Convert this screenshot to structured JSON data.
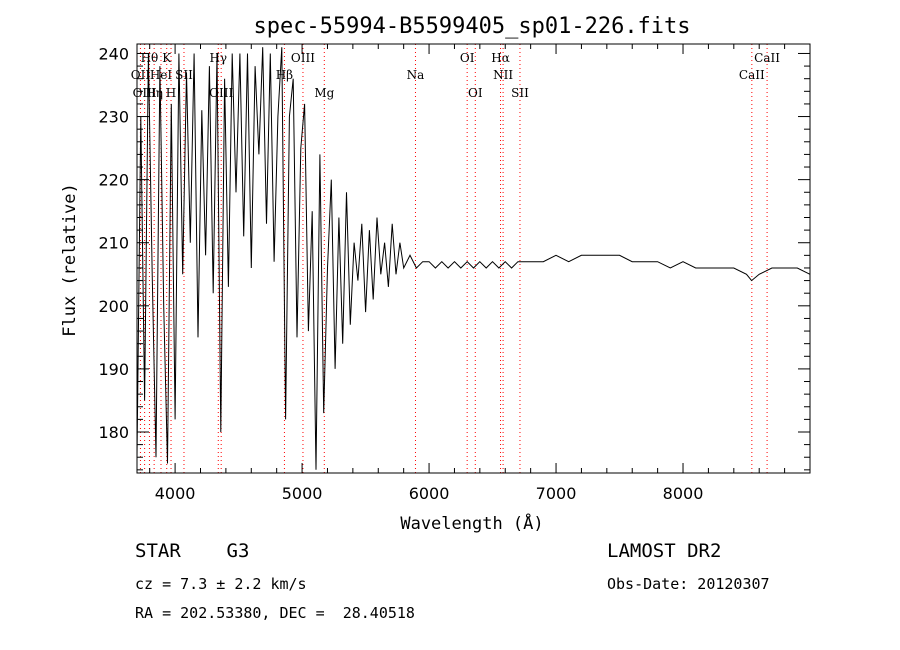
{
  "chart_data": {
    "type": "line",
    "title": "spec-55994-B5599405_sp01-226.fits",
    "xlabel": "Wavelength (Å)",
    "ylabel": "Flux (relative)",
    "xlim": [
      3700,
      9000
    ],
    "ylim": [
      173.5,
      241.5
    ],
    "x_ticks": [
      4000,
      5000,
      6000,
      7000,
      8000
    ],
    "y_ticks": [
      180,
      190,
      200,
      210,
      220,
      230,
      240
    ],
    "grid": false,
    "line_color": "#000000",
    "marker_color": "#ff0000",
    "series": [
      {
        "x": [
          3700,
          3730,
          3760,
          3790,
          3820,
          3850,
          3880,
          3910,
          3940,
          3970,
          4000,
          4030,
          4060,
          4090,
          4120,
          4150,
          4180,
          4210,
          4240,
          4270,
          4300,
          4330,
          4360,
          4390,
          4420,
          4450,
          4480,
          4510,
          4540,
          4570,
          4600,
          4630,
          4660,
          4690,
          4720,
          4750,
          4780,
          4810,
          4840,
          4870,
          4900,
          4930,
          4960,
          4990,
          5020,
          5050,
          5080,
          5110,
          5140,
          5170,
          5200,
          5230,
          5260,
          5290,
          5320,
          5350,
          5380,
          5410,
          5440,
          5470,
          5500,
          5530,
          5560,
          5590,
          5620,
          5650,
          5680,
          5710,
          5740,
          5770,
          5800,
          5850,
          5900,
          5950,
          6000,
          6050,
          6100,
          6150,
          6200,
          6250,
          6300,
          6350,
          6400,
          6450,
          6500,
          6550,
          6600,
          6650,
          6700,
          6750,
          6800,
          6900,
          7000,
          7100,
          7200,
          7300,
          7400,
          7500,
          7600,
          7700,
          7800,
          7900,
          8000,
          8100,
          8200,
          8300,
          8400,
          8500,
          8540,
          8600,
          8700,
          8800,
          8900,
          9000
        ],
        "y": [
          176,
          230,
          185,
          240,
          205,
          176,
          238,
          200,
          175,
          232,
          182,
          240,
          205,
          237,
          210,
          240,
          195,
          231,
          208,
          238,
          202,
          240,
          180,
          236,
          203,
          240,
          218,
          240,
          211,
          240,
          206,
          238,
          224,
          241,
          213,
          240,
          207,
          230,
          241,
          182,
          230,
          236,
          195,
          225,
          232,
          196,
          215,
          174,
          224,
          183,
          206,
          220,
          190,
          214,
          194,
          218,
          197,
          210,
          204,
          213,
          199,
          212,
          201,
          214,
          205,
          210,
          203,
          213,
          205,
          210,
          206,
          208,
          206,
          207,
          207,
          206,
          207,
          206,
          207,
          206,
          207,
          206,
          207,
          206,
          207,
          206,
          207,
          206,
          207,
          207,
          207,
          207,
          208,
          207,
          208,
          208,
          208,
          208,
          207,
          207,
          207,
          206,
          207,
          206,
          206,
          206,
          206,
          205,
          204,
          205,
          206,
          206,
          206,
          205
        ]
      }
    ],
    "line_markers": [
      {
        "label": "Hθ",
        "x": 3798,
        "row": 1
      },
      {
        "label": "K",
        "x": 3934,
        "row": 1
      },
      {
        "label": "Hγ",
        "x": 4340,
        "row": 1
      },
      {
        "label": "OIII",
        "x": 5007,
        "row": 1
      },
      {
        "label": "OI",
        "x": 6300,
        "row": 1
      },
      {
        "label": "Hα",
        "x": 6563,
        "row": 1
      },
      {
        "label": "CaII",
        "x": 8662,
        "row": 1
      },
      {
        "label": "OII",
        "x": 3727,
        "row": 2
      },
      {
        "label": "HeI",
        "x": 3889,
        "row": 2
      },
      {
        "label": "SII",
        "x": 4070,
        "row": 2
      },
      {
        "label": "Hβ",
        "x": 4861,
        "row": 2
      },
      {
        "label": "Na",
        "x": 5893,
        "row": 2
      },
      {
        "label": "NII",
        "x": 6583,
        "row": 2
      },
      {
        "label": "CaII",
        "x": 8542,
        "row": 2
      },
      {
        "label": "OIII",
        "x": 3760,
        "row": 3
      },
      {
        "label": "Hη",
        "x": 3835,
        "row": 3
      },
      {
        "label": "H",
        "x": 3968,
        "row": 3
      },
      {
        "label": "OIII",
        "x": 4363,
        "row": 3
      },
      {
        "label": "Mg",
        "x": 5175,
        "row": 3
      },
      {
        "label": "OI",
        "x": 6364,
        "row": 3
      },
      {
        "label": "SII",
        "x": 6716,
        "row": 3
      }
    ]
  },
  "info": {
    "object": "STAR    G3",
    "survey": "LAMOST DR2",
    "redshift": "cz = 7.3 ± 2.2 km/s",
    "obs_date": "Obs-Date: 20120307",
    "coords": "RA = 202.53380, DEC =  28.40518"
  }
}
